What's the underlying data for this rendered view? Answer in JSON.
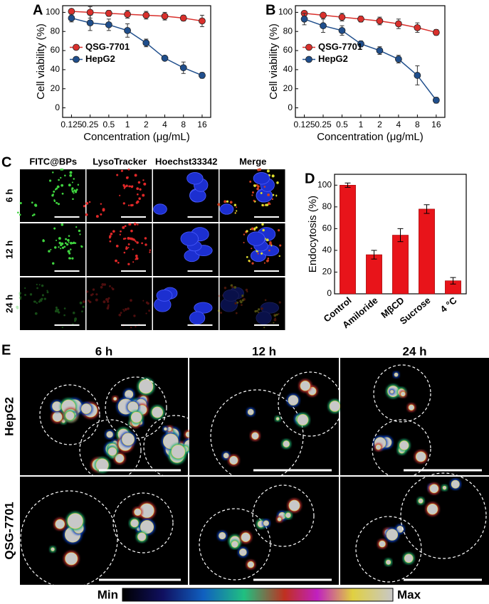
{
  "chart_data": [
    {
      "type": "line",
      "panel_label": "A",
      "xlabel": "Concentration (μg/mL)",
      "ylabel": "Cell viability (%)",
      "xscale": "log",
      "x": [
        0.125,
        0.25,
        0.5,
        1,
        2,
        4,
        8,
        16
      ],
      "xlim": [
        0.09,
        22
      ],
      "xticks": [
        0.125,
        0.25,
        0.5,
        1,
        2,
        4,
        8,
        16
      ],
      "ylim": [
        -10,
        107
      ],
      "yticks": [
        0,
        20,
        40,
        60,
        80,
        100
      ],
      "legend": "center left",
      "series": [
        {
          "name": "QSG-7701",
          "color": "#d9302c",
          "values": [
            101,
            100,
            99,
            98,
            97,
            96,
            94,
            91
          ],
          "errors": [
            2,
            6,
            3,
            4,
            4,
            4,
            3,
            6
          ]
        },
        {
          "name": "HepG2",
          "color": "#1f4e8c",
          "values": [
            94,
            89,
            87,
            81,
            68,
            52,
            42,
            34
          ],
          "errors": [
            4,
            8,
            6,
            7,
            4,
            2,
            6,
            3
          ]
        }
      ]
    },
    {
      "type": "line",
      "panel_label": "B",
      "xlabel": "Concentration (μg/mL)",
      "ylabel": "Cell viability (%)",
      "xscale": "log",
      "x": [
        0.125,
        0.25,
        0.5,
        1,
        2,
        4,
        8,
        16
      ],
      "xlim": [
        0.09,
        22
      ],
      "xticks": [
        0.125,
        0.25,
        0.5,
        1,
        2,
        4,
        8,
        16
      ],
      "ylim": [
        -10,
        107
      ],
      "yticks": [
        0,
        20,
        40,
        60,
        80,
        100
      ],
      "legend": "center left",
      "series": [
        {
          "name": "QSG-7701",
          "color": "#d9302c",
          "values": [
            99,
            97,
            95,
            93,
            91,
            88,
            84,
            79
          ],
          "errors": [
            2,
            2,
            4,
            3,
            4,
            5,
            5,
            3
          ]
        },
        {
          "name": "HepG2",
          "color": "#1f4e8c",
          "values": [
            93,
            86,
            81,
            67,
            60,
            51,
            34,
            8
          ],
          "errors": [
            6,
            7,
            5,
            3,
            4,
            4,
            10,
            3
          ]
        }
      ]
    },
    {
      "type": "bar",
      "panel_label": "D",
      "ylabel": "Endocytosis (%)",
      "categories": [
        "Control",
        "Amiloride",
        "MβCD",
        "Sucrose",
        "4 °C"
      ],
      "values": [
        100,
        36,
        54,
        78,
        12
      ],
      "errors": [
        2,
        4,
        6,
        4,
        3
      ],
      "color": "#e8141a",
      "ylim": [
        0,
        110
      ],
      "yticks": [
        0,
        20,
        40,
        60,
        80,
        100
      ]
    }
  ],
  "panel_c": {
    "label": "C",
    "columns": [
      "FITC@BPs",
      "LysoTracker",
      "Hoechst33342",
      "Merge"
    ],
    "rows": [
      "6 h",
      "12 h",
      "24 h"
    ]
  },
  "panel_e": {
    "label": "E",
    "columns": [
      "6 h",
      "12 h",
      "24 h"
    ],
    "rows": [
      "HepG2",
      "QSG-7701"
    ],
    "colorbar": {
      "min": "Min",
      "max": "Max"
    }
  }
}
